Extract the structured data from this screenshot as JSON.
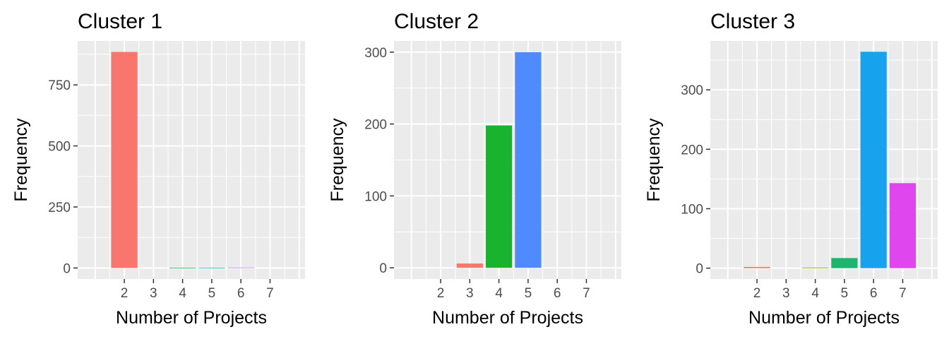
{
  "chart_data": [
    {
      "type": "bar",
      "title": "Cluster 1",
      "xlabel": "Number of Projects",
      "ylabel": "Frequency",
      "x_ticks": [
        "2",
        "3",
        "4",
        "5",
        "6",
        "7"
      ],
      "y_ticks": [
        0,
        250,
        500,
        750
      ],
      "categories": [
        "2",
        "3",
        "4",
        "5",
        "6",
        "7"
      ],
      "values": [
        885,
        0,
        1,
        1,
        2,
        0
      ],
      "ylim": [
        -45,
        930
      ],
      "colors": [
        "#F8766D",
        "#B79F00",
        "#00BA38",
        "#00BFC4",
        "#C77CFF",
        "#F564E3"
      ]
    },
    {
      "type": "bar",
      "title": "Cluster 2",
      "xlabel": "Number of Projects",
      "ylabel": "Frequency",
      "x_ticks": [
        "2",
        "3",
        "4",
        "5",
        "6",
        "7"
      ],
      "y_ticks": [
        0,
        100,
        200,
        300
      ],
      "categories": [
        "2",
        "3",
        "4",
        "5",
        "6",
        "7"
      ],
      "values": [
        0,
        6,
        198,
        300,
        0,
        0
      ],
      "ylim": [
        -15.5,
        315.5
      ],
      "colors": [
        "#F8766D",
        "#F8766D",
        "#19B330",
        "#4F8BFF",
        "#C77CFF",
        "#F564E3"
      ]
    },
    {
      "type": "bar",
      "title": "Cluster 3",
      "xlabel": "Number of Projects",
      "ylabel": "Frequency",
      "x_ticks": [
        "2",
        "3",
        "4",
        "5",
        "6",
        "7"
      ],
      "y_ticks": [
        0,
        100,
        200,
        300
      ],
      "categories": [
        "2",
        "3",
        "4",
        "5",
        "6",
        "7"
      ],
      "values": [
        2,
        0,
        1,
        17,
        364,
        143
      ],
      "ylim": [
        -18.2,
        382.2
      ],
      "colors": [
        "#F8766D",
        "#C49A00",
        "#7CAE00",
        "#1DB46E",
        "#17A2EE",
        "#E046EE"
      ]
    }
  ]
}
